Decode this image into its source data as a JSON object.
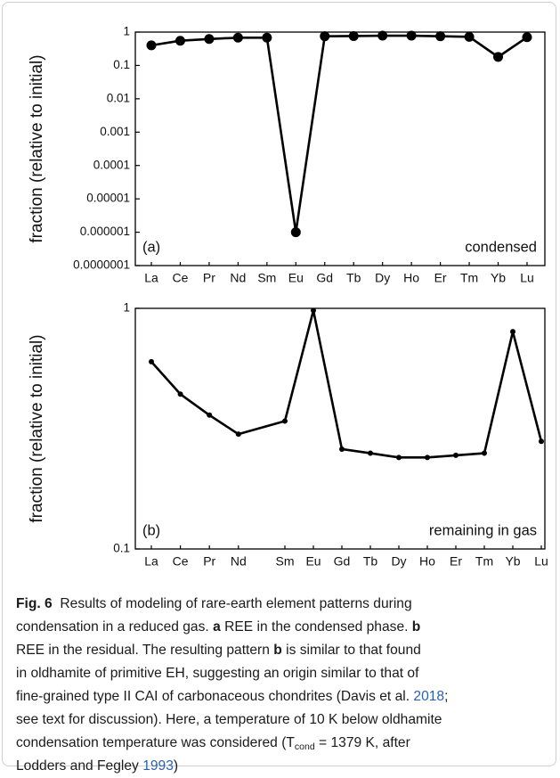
{
  "chart_data": [
    {
      "type": "line",
      "scale": "log",
      "ylabel": "fraction (relative to initial)",
      "categories": [
        "La",
        "Ce",
        "Pr",
        "Nd",
        "Sm",
        "Eu",
        "Gd",
        "Tb",
        "Dy",
        "Ho",
        "Er",
        "Tm",
        "Yb",
        "Lu"
      ],
      "values": [
        0.4,
        0.55,
        0.62,
        0.68,
        0.68,
        1e-06,
        0.75,
        0.76,
        0.78,
        0.78,
        0.75,
        0.72,
        0.18,
        0.7
      ],
      "color": "#000000",
      "ylim": [
        1e-07,
        1
      ],
      "yticks": [
        1,
        0.1,
        0.01,
        0.001,
        0.0001,
        1e-05,
        1e-06,
        {
          "value": 1e-07,
          "label": "0.0000001"
        }
      ],
      "annotations": [
        "(a)",
        "condensed"
      ]
    },
    {
      "type": "line",
      "scale": "log",
      "ylabel": "fraction (relative to initial)",
      "categories": [
        "La",
        "Ce",
        "Pr",
        "Nd",
        "Sm",
        "Eu",
        "Gd",
        "Tb",
        "Dy",
        "Ho",
        "Er",
        "Tm",
        "Yb",
        "Lu"
      ],
      "values": [
        0.6,
        0.44,
        0.36,
        0.3,
        0.34,
        0.98,
        0.26,
        0.25,
        0.24,
        0.24,
        0.245,
        0.25,
        0.8,
        0.28
      ],
      "color": "#000000",
      "ylim": [
        0.1,
        1
      ],
      "yticks": [
        1,
        0.1
      ],
      "annotations": [
        "(b)",
        "remaining in gas"
      ]
    }
  ],
  "caption": {
    "label": "Fig. 6",
    "parts": [
      "Results of modeling of rare-earth element patterns during",
      "condensation in a reduced gas.",
      "a",
      "REE in the condensed phase.",
      "b",
      "REE in the residual. The resulting pattern",
      "b",
      "is similar to that found",
      "in oldhamite of primitive EH, suggesting an origin similar to that of",
      "fine-grained type II CAI of carbonaceous chondrites (Davis et al.",
      "2018",
      ";",
      "see text for discussion). Here, a temperature of 10 K below oldhamite",
      "condensation temperature was considered (T",
      "cond",
      "= 1379 K, after",
      "Lodders and Fegley",
      "1993",
      ")"
    ]
  }
}
